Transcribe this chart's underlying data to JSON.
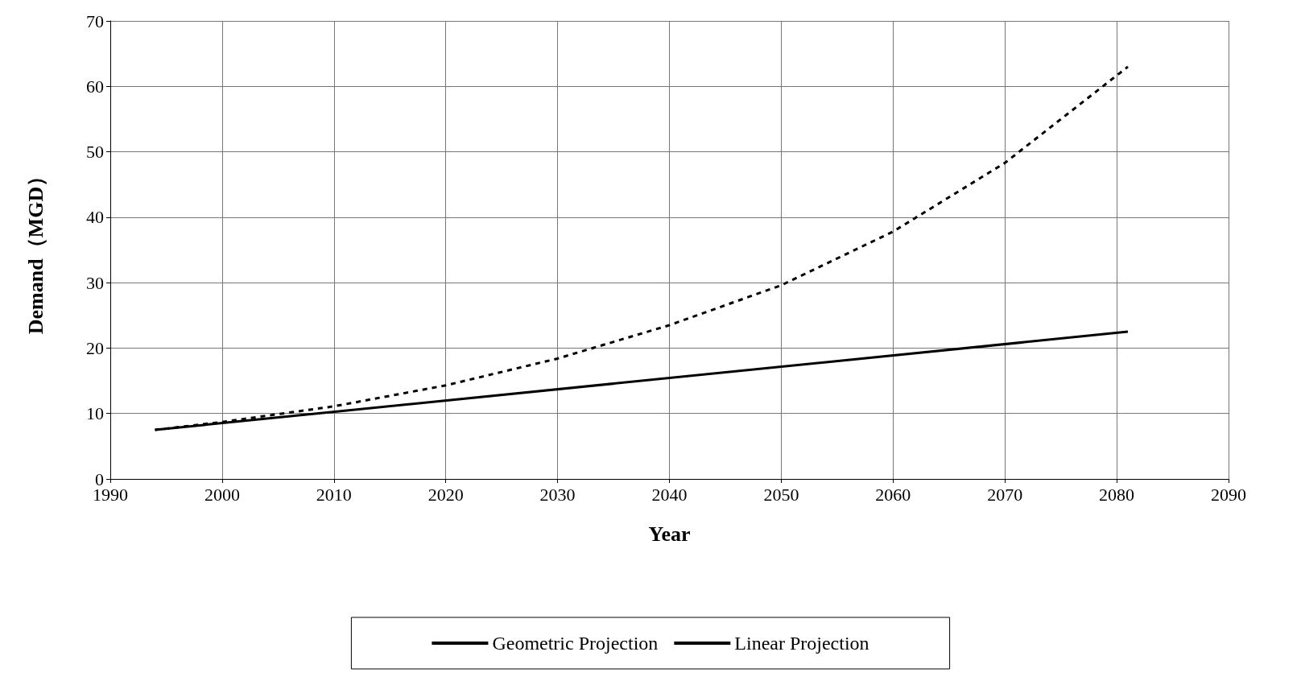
{
  "chart_data": {
    "type": "line",
    "xlabel": "Year",
    "ylabel": "Demand（MGD）",
    "xlim": [
      1990,
      2090
    ],
    "xticks": [
      1990,
      2000,
      2010,
      2020,
      2030,
      2040,
      2050,
      2060,
      2070,
      2080,
      2090
    ],
    "ylim": [
      0,
      70
    ],
    "yticks": [
      0,
      10,
      20,
      30,
      40,
      50,
      60,
      70
    ],
    "grid": true,
    "legend": "bottom",
    "marker": "none",
    "series": [
      {
        "name": "Geometric Projection",
        "color": "#000000",
        "line_style": "dashed",
        "x": [
          1994,
          2000,
          2010,
          2020,
          2030,
          2040,
          2050,
          2060,
          2070,
          2081
        ],
        "values": [
          7.5,
          8.7,
          11.1,
          14.3,
          18.4,
          23.5,
          29.6,
          37.8,
          48.3,
          63
        ]
      },
      {
        "name": "Linear Projection",
        "color": "#000000",
        "line_style": "solid",
        "x": [
          1994,
          2081
        ],
        "values": [
          7.5,
          22.5
        ]
      }
    ]
  }
}
